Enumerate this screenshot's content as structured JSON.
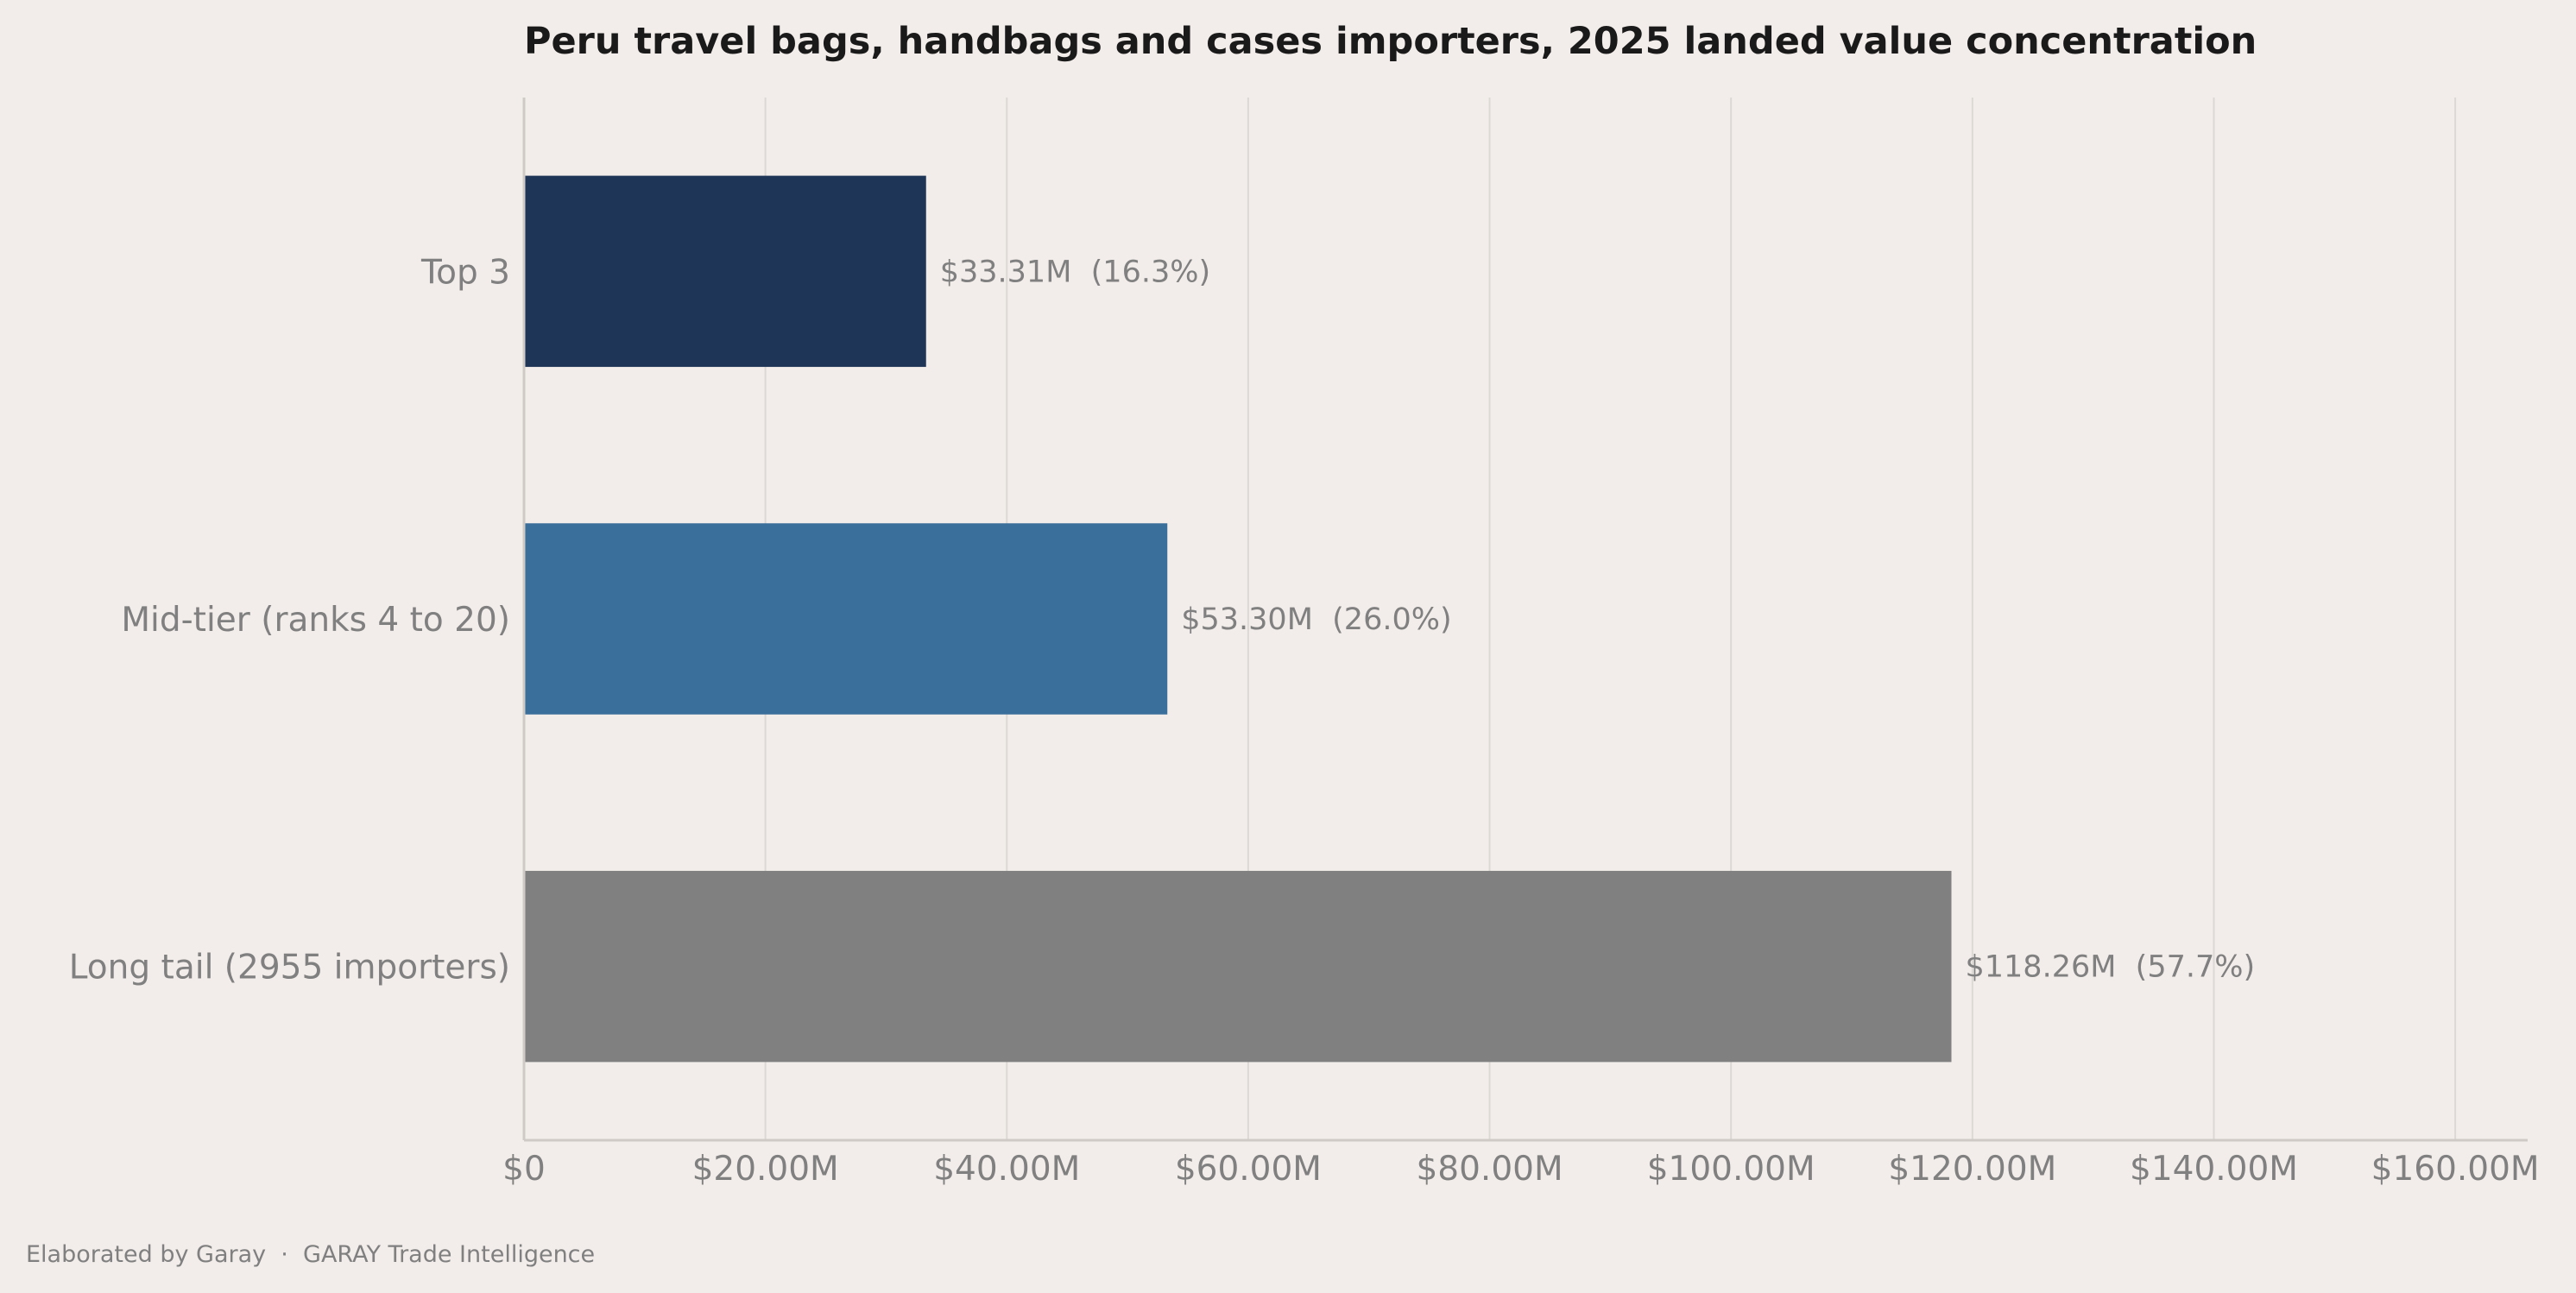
{
  "chart_data": {
    "type": "bar",
    "orientation": "horizontal",
    "title": "Peru travel bags, handbags and cases importers, 2025 landed value concentration",
    "xlabel": "",
    "ylabel": "",
    "xlim": [
      0,
      166000000
    ],
    "grid": "vertical",
    "legend": "none",
    "categories": [
      "Top 3",
      "Mid-tier (ranks 4 to 20)",
      "Long tail (2955 importers)"
    ],
    "values": [
      33310000,
      53300000,
      118260000
    ],
    "data_labels": [
      "$33.31M  (16.3%)",
      "$53.30M  (26.0%)",
      "$118.26M  (57.7%)"
    ],
    "colors": [
      "#1e3557",
      "#3a6e9b",
      "#808080"
    ],
    "x_ticks": [
      0,
      20000000,
      40000000,
      60000000,
      80000000,
      100000000,
      120000000,
      140000000,
      160000000
    ],
    "x_tick_labels": [
      "$0",
      "$20.00M",
      "$40.00M",
      "$60.00M",
      "$80.00M",
      "$100.00M",
      "$120.00M",
      "$140.00M",
      "$160.00M"
    ]
  },
  "footer": {
    "credit": "Elaborated by Garay  ·  GARAY Trade Intelligence"
  },
  "colors": {
    "background": "#f2edea",
    "title": "#1a1a1a",
    "muted_text": "#808080",
    "grid": "#dcd8d5"
  }
}
